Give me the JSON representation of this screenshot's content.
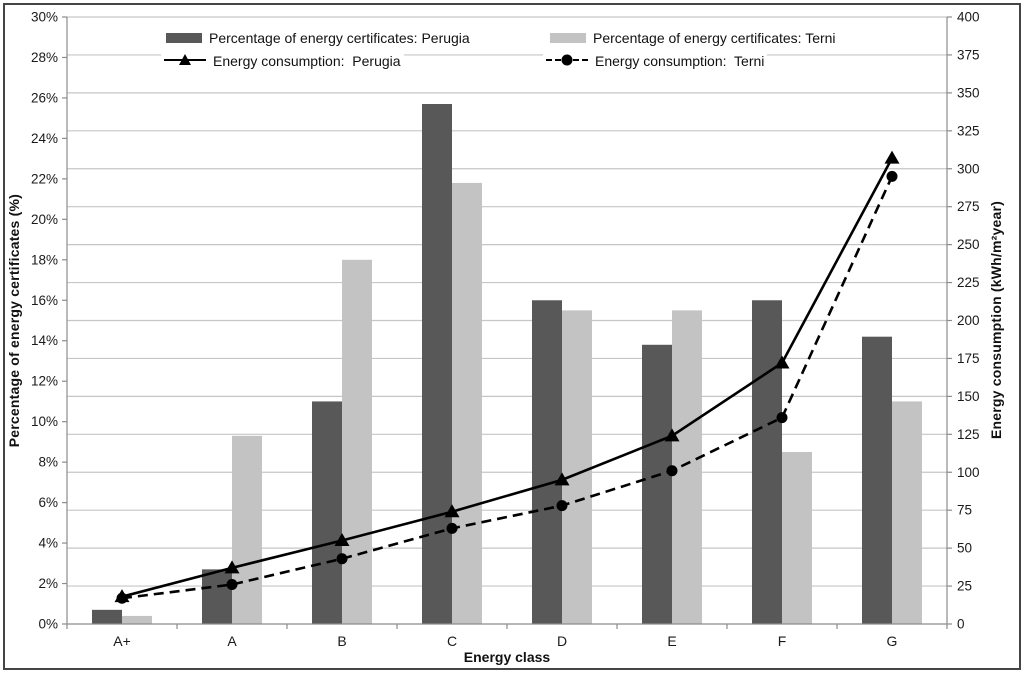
{
  "chart_data": {
    "type": "combo-bar-line",
    "categories": [
      "A+",
      "A",
      "B",
      "C",
      "D",
      "E",
      "F",
      "G"
    ],
    "bar_series": [
      {
        "name": "Percentage of energy certificates: Perugia",
        "axis": "left",
        "color": "#585858",
        "values": [
          0.7,
          2.7,
          11.0,
          25.7,
          16.0,
          13.8,
          16.0,
          14.2
        ]
      },
      {
        "name": "Percentage of energy certificates: Terni",
        "axis": "left",
        "color": "#c3c3c3",
        "values": [
          0.4,
          9.3,
          18.0,
          21.8,
          15.5,
          15.5,
          8.5,
          11.0
        ]
      }
    ],
    "line_series": [
      {
        "name": "Energy consumption:  Perugia",
        "axis": "right",
        "color": "#000000",
        "line_style": "solid",
        "marker": "triangle",
        "values": [
          18,
          37,
          55,
          74,
          95,
          124,
          172,
          307
        ]
      },
      {
        "name": "Energy consumption:  Terni",
        "axis": "right",
        "color": "#000000",
        "line_style": "dashed",
        "marker": "circle",
        "values": [
          17,
          26,
          43,
          63,
          78,
          101,
          136,
          295
        ]
      }
    ],
    "x_axis": {
      "title": "Energy class"
    },
    "left_axis": {
      "title": "Percentage of energy certificates (%)",
      "min": 0,
      "max": 30,
      "tick_step": 2,
      "ticks": [
        "0%",
        "2%",
        "4%",
        "6%",
        "8%",
        "10%",
        "12%",
        "14%",
        "16%",
        "18%",
        "20%",
        "22%",
        "24%",
        "26%",
        "28%",
        "30%"
      ]
    },
    "right_axis": {
      "title": "Energy consumption (kWh/m²year)",
      "min": 0,
      "max": 400,
      "tick_step": 25,
      "ticks": [
        "0",
        "25",
        "50",
        "75",
        "100",
        "125",
        "150",
        "175",
        "200",
        "225",
        "250",
        "275",
        "300",
        "325",
        "350",
        "375",
        "400"
      ]
    },
    "grid": {
      "show": true,
      "follows_axis": "right",
      "step": 25,
      "color": "#c6c6c6"
    },
    "legend_position": "top-inside"
  },
  "styles": {
    "axis_line_color": "#8c8c8c",
    "tick_label_color": "#1a1a1a",
    "frame_border_color": "#454545",
    "background": "#ffffff"
  }
}
